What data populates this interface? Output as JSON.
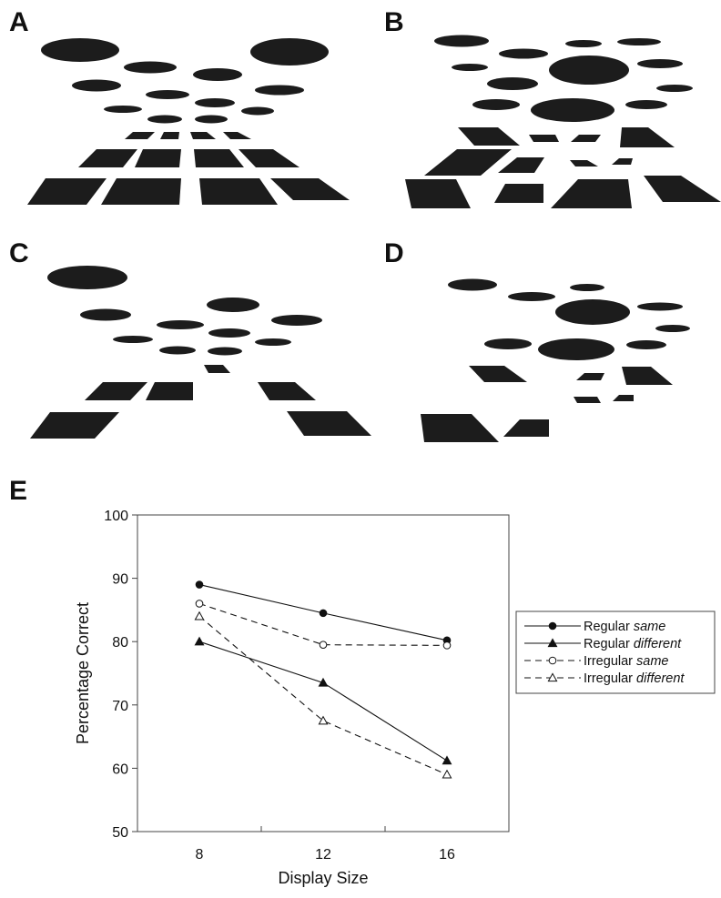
{
  "panels": {
    "a": "A",
    "b": "B",
    "c": "C",
    "d": "D",
    "e": "E"
  },
  "chart_data": {
    "type": "line",
    "xlabel": "Display Size",
    "ylabel": "Percentage Correct",
    "x": [
      8,
      12,
      16
    ],
    "xticks": [
      "8",
      "12",
      "16"
    ],
    "xlim": [
      6,
      18
    ],
    "ylim": [
      50,
      100
    ],
    "yticks": [
      "50",
      "60",
      "70",
      "80",
      "90",
      "100"
    ],
    "legend_position": "right",
    "series": [
      {
        "name_plain": "Regular ",
        "name_italic": "same",
        "values": [
          89,
          84.5,
          80.2
        ],
        "line": "solid",
        "marker": "circle-filled"
      },
      {
        "name_plain": "Regular ",
        "name_italic": "different",
        "values": [
          80,
          73.5,
          61.2
        ],
        "line": "solid",
        "marker": "triangle-filled"
      },
      {
        "name_plain": "Irregular ",
        "name_italic": "same",
        "values": [
          86,
          79.5,
          79.4
        ],
        "line": "dashed",
        "marker": "circle-open"
      },
      {
        "name_plain": "Irregular ",
        "name_italic": "different",
        "values": [
          84,
          67.5,
          59
        ],
        "line": "dashed",
        "marker": "triangle-open"
      }
    ]
  }
}
